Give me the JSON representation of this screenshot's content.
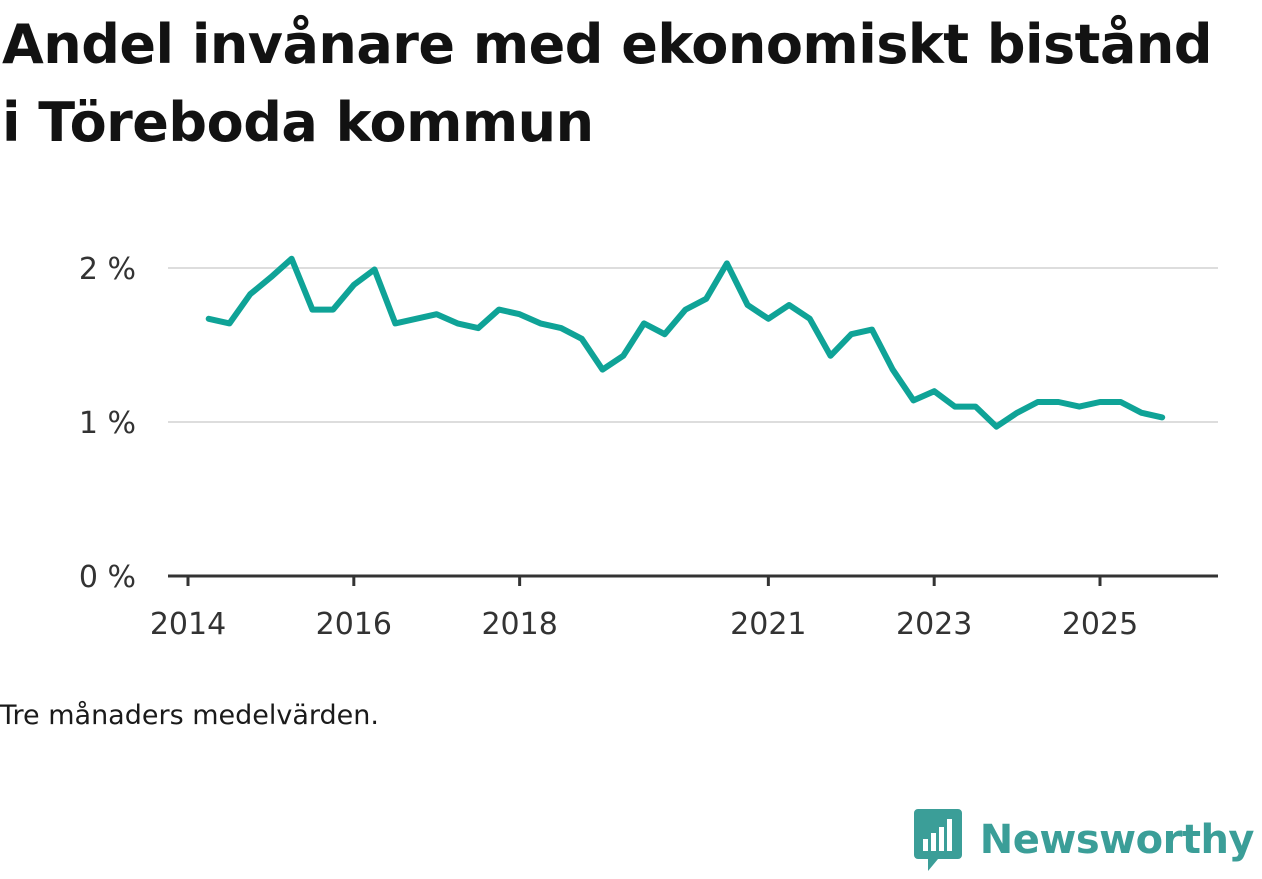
{
  "title": "Andel invånare med ekonomiskt bistånd i Töreboda kommun",
  "note": "Tre månaders medelvärden.",
  "brand": {
    "name": "Newsworthy",
    "color": "#3b9e98"
  },
  "colors": {
    "line": "#0fa397",
    "grid": "#dddddd",
    "axis": "#333333"
  },
  "chart_data": {
    "type": "line",
    "title": "Andel invånare med ekonomiskt bistånd i Töreboda kommun",
    "xlabel": "",
    "ylabel": "",
    "xlim": [
      2014.0,
      2026.25
    ],
    "ylim": [
      0,
      2.0
    ],
    "x_ticks": [
      {
        "label": "2014",
        "value": 2014.0
      },
      {
        "label": "2016",
        "value": 2016.0
      },
      {
        "label": "2018",
        "value": 2018.0
      },
      {
        "label": "2021",
        "value": 2021.0
      },
      {
        "label": "2023",
        "value": 2023.0
      },
      {
        "label": "2025",
        "value": 2025.0
      }
    ],
    "y_ticks": [
      {
        "label": "0 %",
        "value": 0
      },
      {
        "label": "1 %",
        "value": 1
      },
      {
        "label": "2 %",
        "value": 2
      }
    ],
    "series": [
      {
        "name": "Andel invånare med ekonomiskt bistånd",
        "x": [
          2014.25,
          2014.5,
          2014.75,
          2015.0,
          2015.25,
          2015.5,
          2015.75,
          2016.0,
          2016.25,
          2016.5,
          2016.75,
          2017.0,
          2017.25,
          2017.5,
          2017.75,
          2018.0,
          2018.25,
          2018.5,
          2018.75,
          2019.0,
          2019.25,
          2019.5,
          2019.75,
          2020.0,
          2020.25,
          2020.5,
          2020.75,
          2021.0,
          2021.25,
          2021.5,
          2021.75,
          2022.0,
          2022.25,
          2022.5,
          2022.75,
          2023.0,
          2023.25,
          2023.5,
          2023.75,
          2024.0,
          2024.25,
          2024.5,
          2024.75,
          2025.0,
          2025.25,
          2025.5,
          2025.75
        ],
        "values": [
          1.67,
          1.64,
          1.83,
          1.94,
          2.06,
          1.73,
          1.73,
          1.89,
          1.99,
          1.64,
          1.67,
          1.7,
          1.64,
          1.61,
          1.73,
          1.7,
          1.64,
          1.61,
          1.54,
          1.34,
          1.43,
          1.64,
          1.57,
          1.73,
          1.8,
          2.03,
          1.76,
          1.67,
          1.76,
          1.67,
          1.43,
          1.57,
          1.6,
          1.34,
          1.14,
          1.2,
          1.1,
          1.1,
          0.97,
          1.06,
          1.13,
          1.13,
          1.1,
          1.13,
          1.13,
          1.06,
          1.03
        ]
      }
    ]
  }
}
